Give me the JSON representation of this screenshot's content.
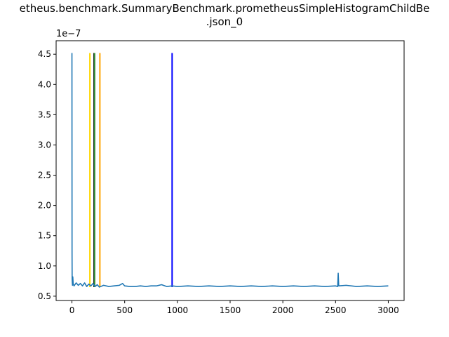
{
  "chart_data": {
    "type": "line",
    "title_line1": "etheus.benchmark.SummaryBenchmark.prometheusSimpleHistogramChildBe",
    "title_line2": ".json_0",
    "y_offset_label": "1e−7",
    "xlabel": "",
    "ylabel": "",
    "xlim": [
      -150,
      3150
    ],
    "ylim": [
      0.4288,
      4.723
    ],
    "x_ticks": [
      0,
      500,
      1000,
      1500,
      2000,
      2500,
      3000
    ],
    "x_tick_labels": [
      "0",
      "500",
      "1000",
      "1500",
      "2000",
      "2500",
      "3000"
    ],
    "y_ticks": [
      0.5,
      1.0,
      1.5,
      2.0,
      2.5,
      3.0,
      3.5,
      4.0,
      4.5
    ],
    "y_tick_labels": [
      "0.5",
      "1.0",
      "1.5",
      "2.0",
      "2.5",
      "3.0",
      "3.5",
      "4.0",
      "4.5"
    ],
    "grid": false,
    "series": [
      {
        "color": "#1f77b4",
        "points": [
          [
            0,
            4.52
          ],
          [
            1,
            1.2
          ],
          [
            2,
            0.78
          ],
          [
            5,
            0.68
          ],
          [
            8,
            0.82
          ],
          [
            12,
            0.7
          ],
          [
            20,
            0.67
          ],
          [
            40,
            0.72
          ],
          [
            60,
            0.68
          ],
          [
            80,
            0.71
          ],
          [
            100,
            0.67
          ],
          [
            120,
            0.72
          ],
          [
            140,
            0.66
          ],
          [
            160,
            0.7
          ],
          [
            180,
            0.67
          ],
          [
            200,
            0.71
          ],
          [
            220,
            0.66
          ],
          [
            240,
            0.69
          ],
          [
            260,
            0.65
          ],
          [
            300,
            0.68
          ],
          [
            350,
            0.66
          ],
          [
            400,
            0.67
          ],
          [
            450,
            0.68
          ],
          [
            480,
            0.71
          ],
          [
            500,
            0.67
          ],
          [
            550,
            0.66
          ],
          [
            600,
            0.66
          ],
          [
            650,
            0.67
          ],
          [
            700,
            0.66
          ],
          [
            750,
            0.67
          ],
          [
            800,
            0.67
          ],
          [
            850,
            0.69
          ],
          [
            900,
            0.66
          ],
          [
            950,
            0.67
          ],
          [
            1000,
            0.66
          ],
          [
            1100,
            0.67
          ],
          [
            1200,
            0.66
          ],
          [
            1300,
            0.67
          ],
          [
            1400,
            0.66
          ],
          [
            1500,
            0.67
          ],
          [
            1600,
            0.66
          ],
          [
            1700,
            0.67
          ],
          [
            1800,
            0.66
          ],
          [
            1900,
            0.67
          ],
          [
            2000,
            0.66
          ],
          [
            2100,
            0.67
          ],
          [
            2200,
            0.66
          ],
          [
            2300,
            0.67
          ],
          [
            2400,
            0.66
          ],
          [
            2500,
            0.67
          ],
          [
            2520,
            0.66
          ],
          [
            2525,
            0.88
          ],
          [
            2530,
            0.67
          ],
          [
            2600,
            0.68
          ],
          [
            2700,
            0.66
          ],
          [
            2800,
            0.67
          ],
          [
            2900,
            0.66
          ],
          [
            3000,
            0.67
          ]
        ]
      }
    ],
    "vertical_lines": [
      {
        "x": 170,
        "color": "#ffd700"
      },
      {
        "x": 210,
        "color": "#000000"
      },
      {
        "x": 215,
        "color": "#2e8b2e"
      },
      {
        "x": 265,
        "color": "#ffa500"
      },
      {
        "x": 950,
        "color": "#0000ff"
      }
    ],
    "vline_range": [
      0.65,
      4.52
    ]
  }
}
